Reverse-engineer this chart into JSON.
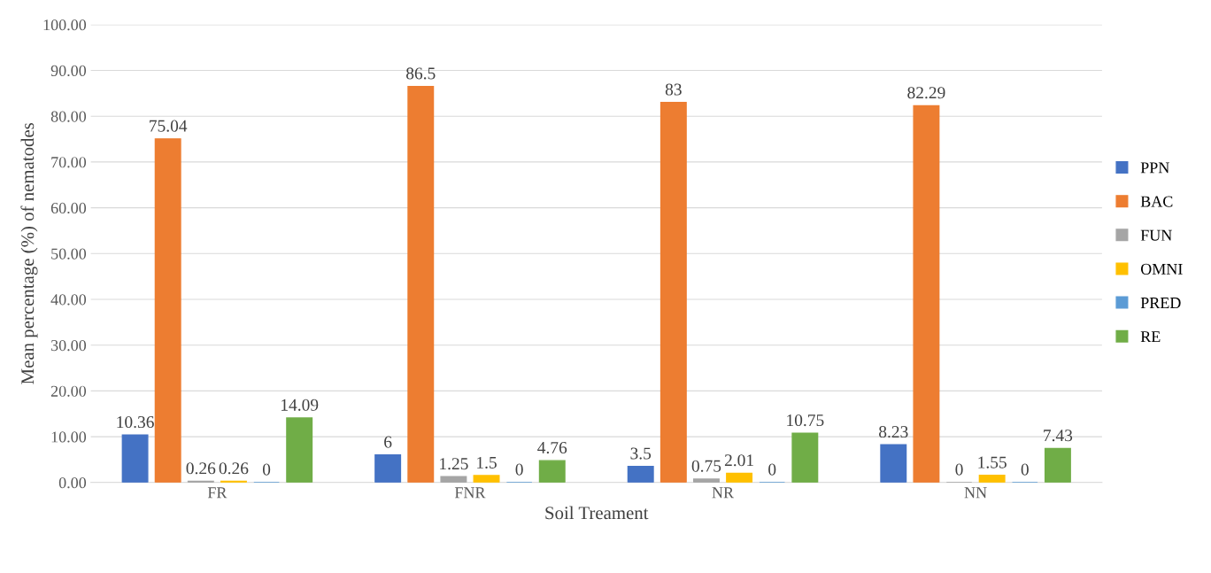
{
  "chart_data": {
    "type": "bar",
    "xlabel": "Soil Treament",
    "ylabel": "Mean percentage (%) of nematodes",
    "categories": [
      "FR",
      "FNR",
      "NR",
      "NN"
    ],
    "series": [
      {
        "name": "PPN",
        "color": "#4472c4",
        "values": [
          10.36,
          6,
          3.5,
          8.23
        ]
      },
      {
        "name": "BAC",
        "color": "#ed7d31",
        "values": [
          75.04,
          86.5,
          83,
          82.29
        ]
      },
      {
        "name": "FUN",
        "color": "#a5a5a5",
        "values": [
          0.26,
          1.25,
          0.75,
          0
        ]
      },
      {
        "name": "OMNI",
        "color": "#ffc000",
        "values": [
          0.26,
          1.5,
          2.01,
          1.55
        ]
      },
      {
        "name": "PRED",
        "color": "#5b9bd5",
        "values": [
          0,
          0,
          0,
          0
        ]
      },
      {
        "name": "RE",
        "color": "#70ad47",
        "values": [
          14.09,
          4.76,
          10.75,
          7.43
        ]
      }
    ],
    "ylim": [
      0,
      100
    ],
    "yticks": [
      {
        "value": 0,
        "label": "0.00"
      },
      {
        "value": 10,
        "label": "10.00"
      },
      {
        "value": 20,
        "label": "20.00"
      },
      {
        "value": 30,
        "label": "30.00"
      },
      {
        "value": 40,
        "label": "40.00"
      },
      {
        "value": 50,
        "label": "50.00"
      },
      {
        "value": 60,
        "label": "60.00"
      },
      {
        "value": 70,
        "label": "70.00"
      },
      {
        "value": 80,
        "label": "80.00"
      },
      {
        "value": 90,
        "label": "90.00"
      },
      {
        "value": 100,
        "label": "100.00"
      }
    ],
    "grid": "y",
    "legend": "right",
    "data_labels": true
  }
}
